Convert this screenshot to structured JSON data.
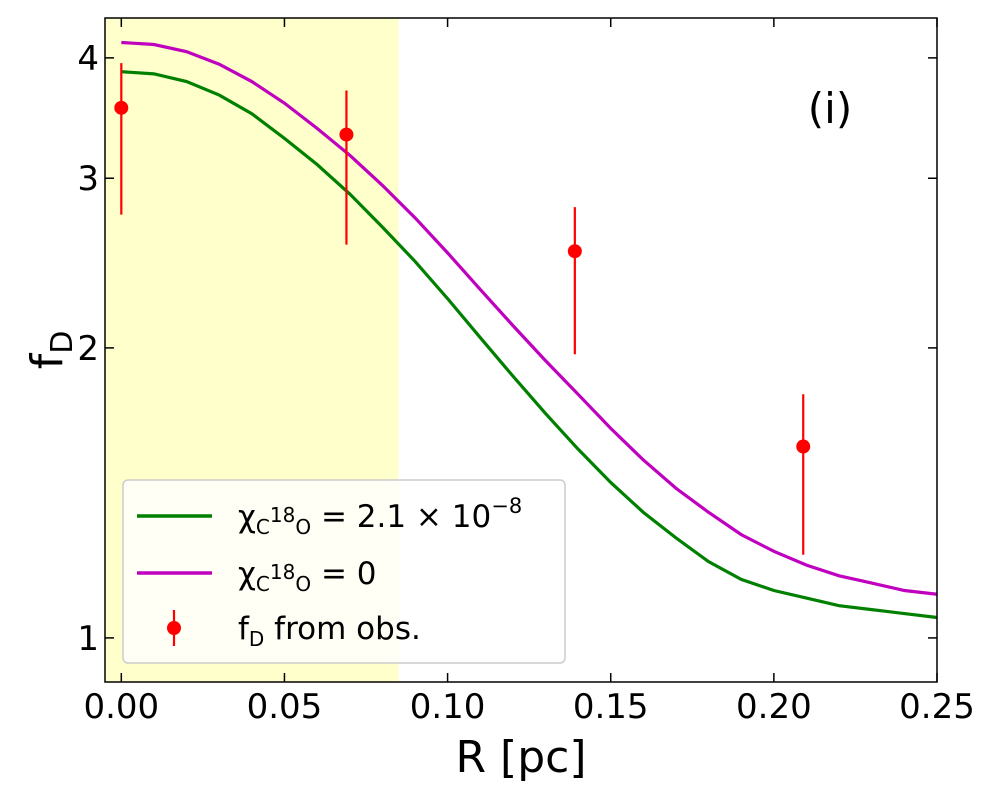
{
  "chart_data": {
    "type": "line",
    "y_scale": "log",
    "xlim": [
      -0.005,
      0.25
    ],
    "ylim": [
      0.9,
      4.4
    ],
    "xlabel": "R [pc]",
    "ylabel": {
      "main": "f",
      "sub": "D"
    },
    "panel_label": "(i)",
    "x_ticks": [
      {
        "value": 0.0,
        "label": "0.00"
      },
      {
        "value": 0.05,
        "label": "0.05"
      },
      {
        "value": 0.1,
        "label": "0.10"
      },
      {
        "value": 0.15,
        "label": "0.15"
      },
      {
        "value": 0.2,
        "label": "0.20"
      },
      {
        "value": 0.25,
        "label": "0.25"
      }
    ],
    "y_ticks": [
      {
        "value": 1,
        "label": "1"
      },
      {
        "value": 2,
        "label": "2"
      },
      {
        "value": 3,
        "label": "3"
      },
      {
        "value": 4,
        "label": "4"
      }
    ],
    "shaded_region": {
      "x_range": [
        -0.005,
        0.085
      ],
      "color": "#ffffcc"
    },
    "series": [
      {
        "name": "χ_C18O = 2.1×10^-8",
        "color": "#008000",
        "legend": {
          "chi": "χ",
          "sub_letter1": "C",
          "sup": "18",
          "sub_letter2": "O",
          "rhs": " = 2.1 × 10",
          "exp": "−8"
        },
        "x": [
          0.0,
          0.01,
          0.02,
          0.03,
          0.04,
          0.05,
          0.06,
          0.07,
          0.08,
          0.09,
          0.1,
          0.11,
          0.12,
          0.13,
          0.14,
          0.15,
          0.16,
          0.17,
          0.18,
          0.19,
          0.2,
          0.21,
          0.22,
          0.23,
          0.24,
          0.25
        ],
        "y": [
          3.87,
          3.85,
          3.78,
          3.66,
          3.5,
          3.3,
          3.1,
          2.89,
          2.67,
          2.46,
          2.25,
          2.05,
          1.87,
          1.71,
          1.57,
          1.45,
          1.35,
          1.27,
          1.2,
          1.15,
          1.12,
          1.1,
          1.08,
          1.07,
          1.06,
          1.05
        ]
      },
      {
        "name": "χ_C18O = 0",
        "color": "#bf00bf",
        "legend": {
          "chi": "χ",
          "sub_letter1": "C",
          "sup": "18",
          "sub_letter2": "O",
          "rhs": " = 0"
        },
        "x": [
          0.0,
          0.01,
          0.02,
          0.03,
          0.04,
          0.05,
          0.06,
          0.07,
          0.08,
          0.09,
          0.1,
          0.11,
          0.12,
          0.13,
          0.14,
          0.15,
          0.16,
          0.17,
          0.18,
          0.19,
          0.2,
          0.21,
          0.22,
          0.23,
          0.24,
          0.25
        ],
        "y": [
          4.15,
          4.13,
          4.06,
          3.94,
          3.78,
          3.59,
          3.38,
          3.17,
          2.95,
          2.73,
          2.51,
          2.3,
          2.11,
          1.94,
          1.79,
          1.65,
          1.53,
          1.43,
          1.35,
          1.28,
          1.23,
          1.19,
          1.16,
          1.14,
          1.12,
          1.11
        ]
      }
    ],
    "observations": {
      "name": "f_D from obs.",
      "color": "#ff0000",
      "legend": {
        "main": "f",
        "sub": "D",
        "rest": " from obs."
      },
      "points": [
        {
          "x": 0.0,
          "y": 3.55,
          "y_low": 2.75,
          "y_high": 3.95
        },
        {
          "x": 0.069,
          "y": 3.33,
          "y_low": 2.56,
          "y_high": 3.7
        },
        {
          "x": 0.139,
          "y": 2.52,
          "y_low": 1.97,
          "y_high": 2.8
        },
        {
          "x": 0.209,
          "y": 1.58,
          "y_low": 1.22,
          "y_high": 1.79
        }
      ]
    },
    "legend_position": "lower-left"
  }
}
